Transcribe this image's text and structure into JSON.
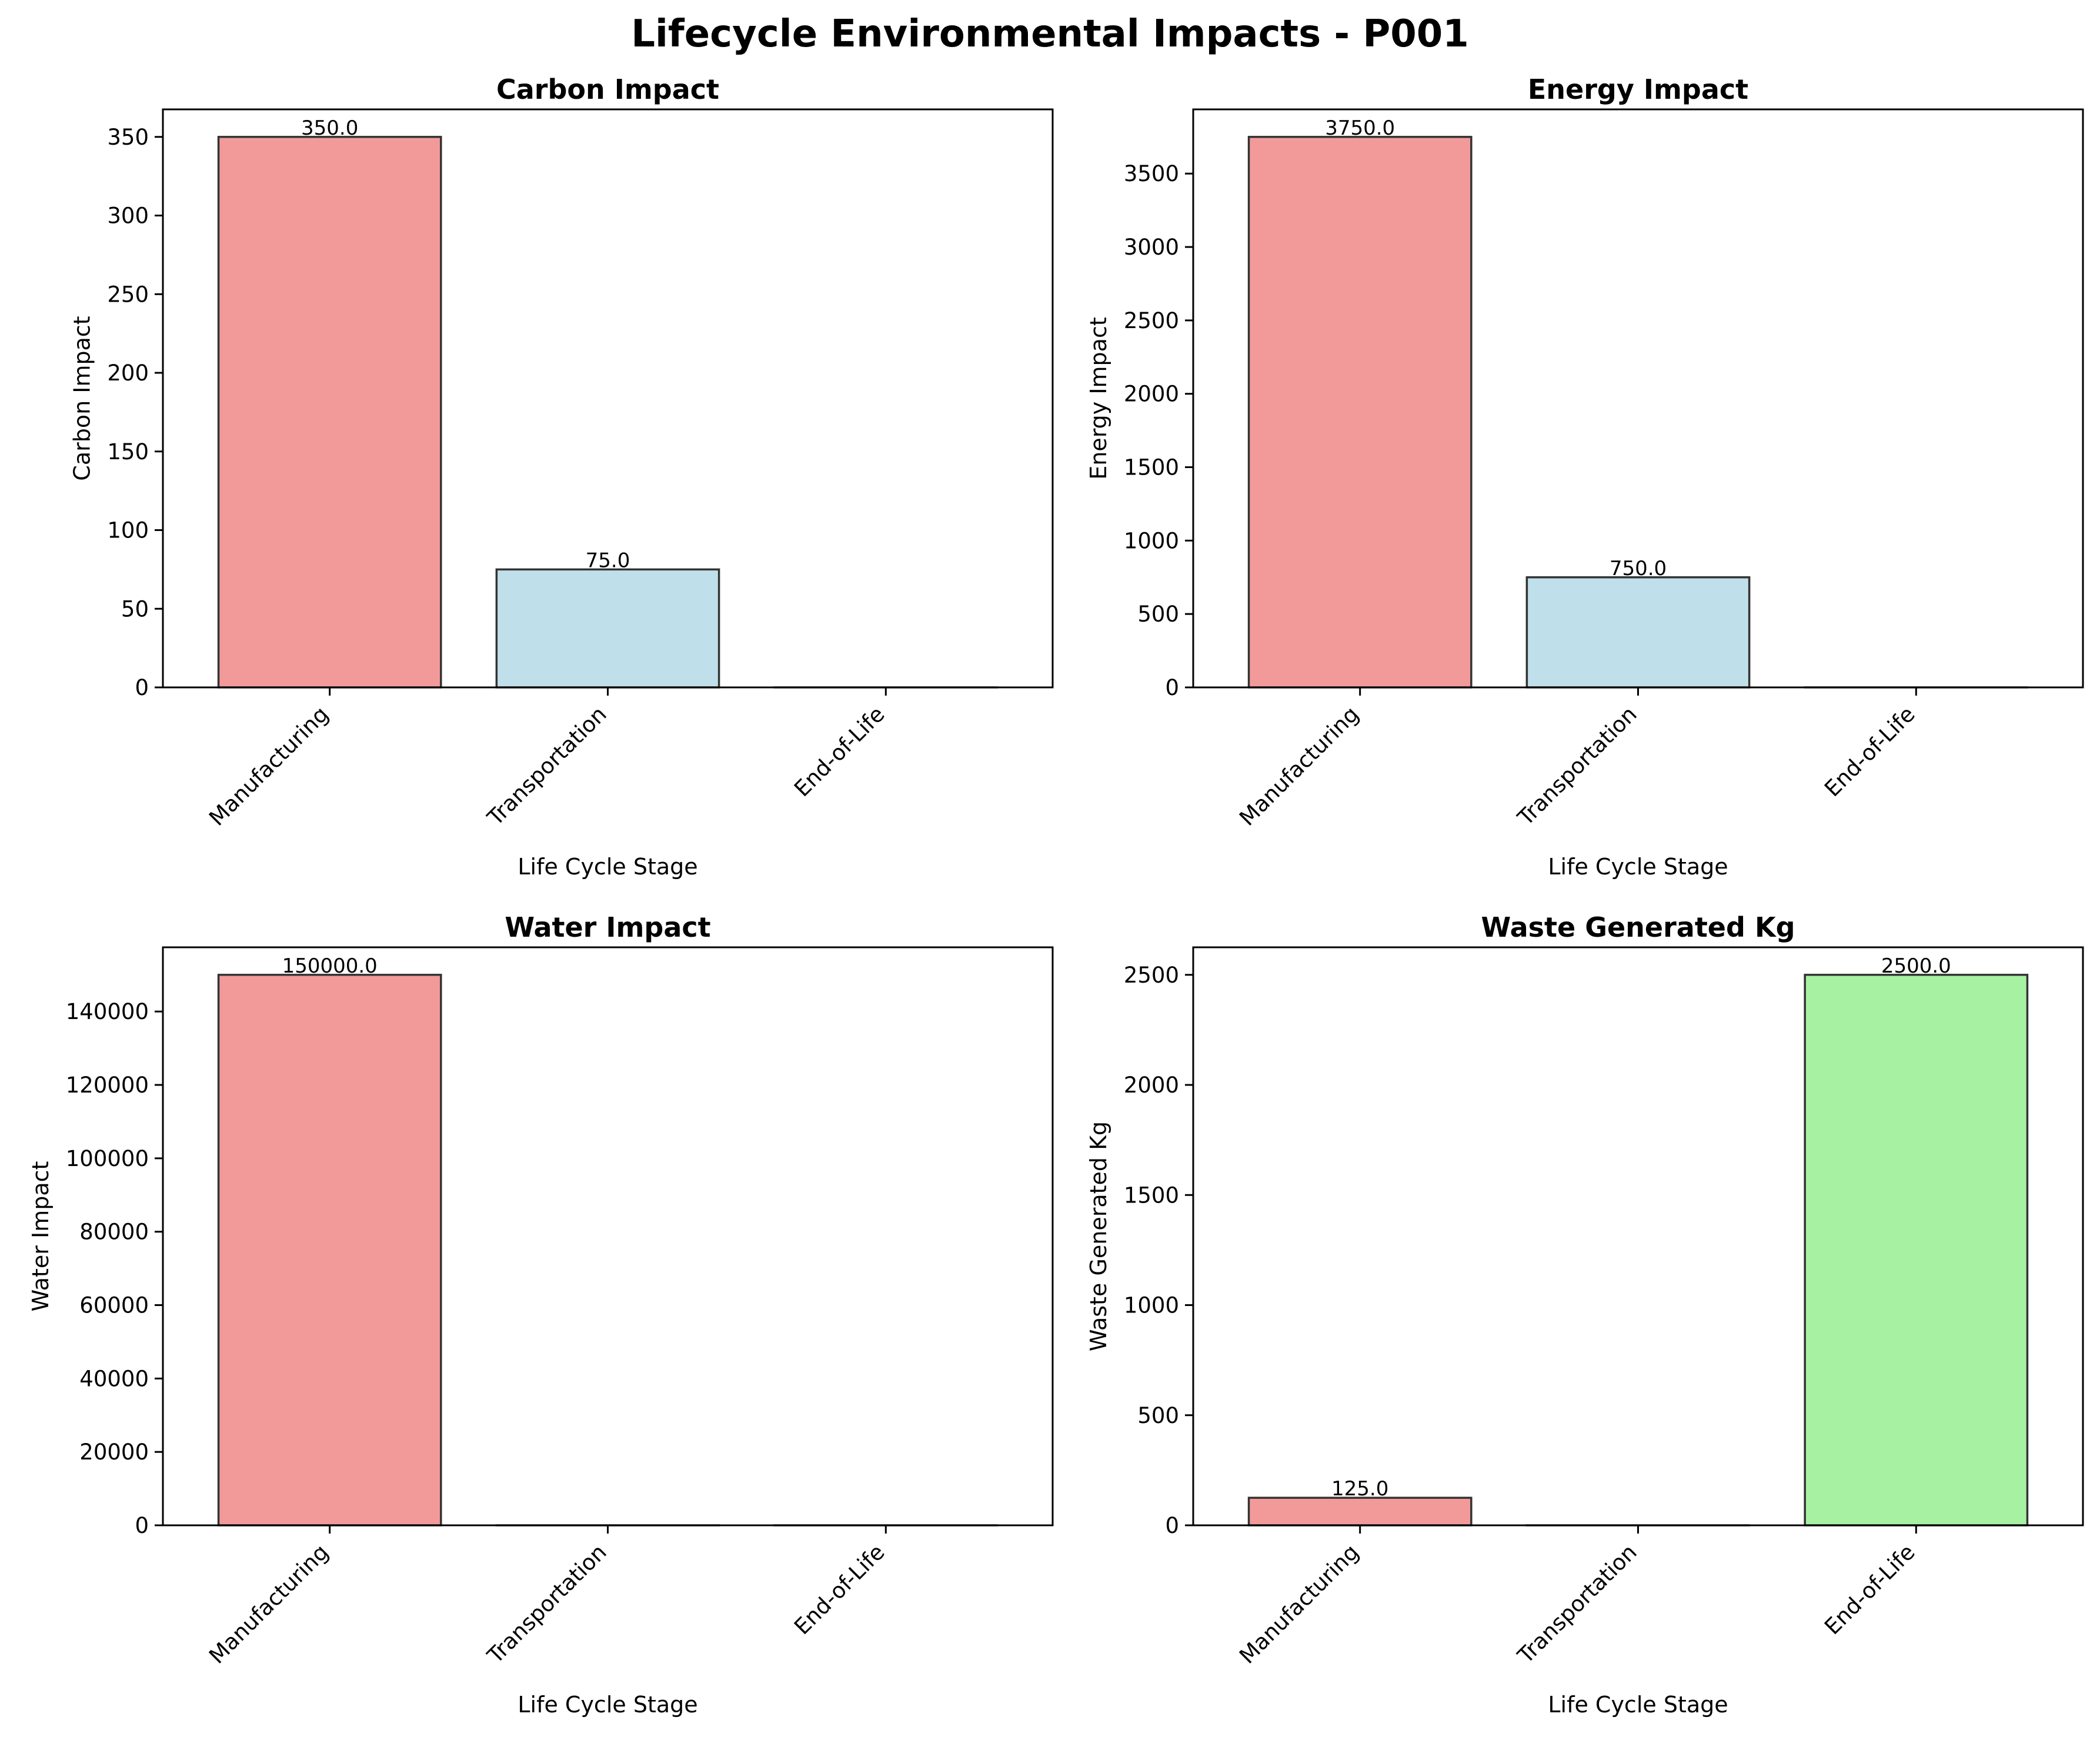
{
  "figure": {
    "title": "Lifecycle Environmental Impacts - P001"
  },
  "colors": {
    "manufacturing": "#f29a9a",
    "transportation": "#bfe0ea",
    "end_of_life": "#a6f2a2",
    "edge": "#333333"
  },
  "chart_data": [
    {
      "type": "bar",
      "title": "Carbon Impact",
      "xlabel": "Life Cycle Stage",
      "ylabel": "Carbon Impact",
      "categories": [
        "Manufacturing",
        "Transportation",
        "End-of-Life"
      ],
      "values": [
        350.0,
        75.0,
        0.0
      ],
      "labels": [
        "350.0",
        "75.0",
        ""
      ],
      "ylim": [
        0,
        367.5
      ],
      "yticks": [
        0,
        50,
        100,
        150,
        200,
        250,
        300,
        350
      ],
      "yticklabels": [
        "0",
        "50",
        "100",
        "150",
        "200",
        "250",
        "300",
        "350"
      ],
      "grid": false
    },
    {
      "type": "bar",
      "title": "Energy Impact",
      "xlabel": "Life Cycle Stage",
      "ylabel": "Energy Impact",
      "categories": [
        "Manufacturing",
        "Transportation",
        "End-of-Life"
      ],
      "values": [
        3750.0,
        750.0,
        0.0
      ],
      "labels": [
        "3750.0",
        "750.0",
        ""
      ],
      "ylim": [
        0,
        3937.5
      ],
      "yticks": [
        0,
        500,
        1000,
        1500,
        2000,
        2500,
        3000,
        3500
      ],
      "yticklabels": [
        "0",
        "500",
        "1000",
        "1500",
        "2000",
        "2500",
        "3000",
        "3500"
      ],
      "grid": false
    },
    {
      "type": "bar",
      "title": "Water Impact",
      "xlabel": "Life Cycle Stage",
      "ylabel": "Water Impact",
      "categories": [
        "Manufacturing",
        "Transportation",
        "End-of-Life"
      ],
      "values": [
        150000.0,
        0.0,
        0.0
      ],
      "labels": [
        "150000.0",
        "",
        ""
      ],
      "ylim": [
        0,
        157500
      ],
      "yticks": [
        0,
        20000,
        40000,
        60000,
        80000,
        100000,
        120000,
        140000
      ],
      "yticklabels": [
        "0",
        "20000",
        "40000",
        "60000",
        "80000",
        "100000",
        "120000",
        "140000"
      ],
      "grid": false
    },
    {
      "type": "bar",
      "title": "Waste Generated Kg",
      "xlabel": "Life Cycle Stage",
      "ylabel": "Waste Generated Kg",
      "categories": [
        "Manufacturing",
        "Transportation",
        "End-of-Life"
      ],
      "values": [
        125.0,
        0.0,
        2500.0
      ],
      "labels": [
        "125.0",
        "",
        "2500.0"
      ],
      "ylim": [
        0,
        2625
      ],
      "yticks": [
        0,
        500,
        1000,
        1500,
        2000,
        2500
      ],
      "yticklabels": [
        "0",
        "500",
        "1000",
        "1500",
        "2000",
        "2500"
      ],
      "grid": false
    }
  ]
}
